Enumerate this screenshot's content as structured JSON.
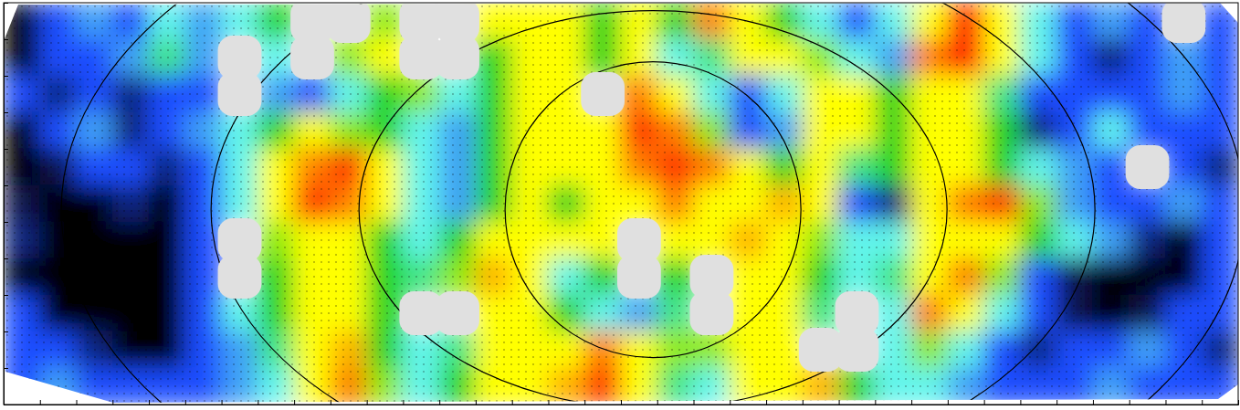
{
  "chart_data": {
    "type": "heatmap",
    "z": [
      [
        0,
        1,
        1.5,
        1,
        2,
        1.5,
        2,
        3,
        null,
        null,
        3.5,
        null,
        null,
        4,
        4,
        4,
        3,
        4,
        3,
        4.5,
        4,
        3,
        2,
        1,
        2,
        4,
        5,
        4,
        2,
        1,
        1.5,
        1,
        null,
        1
      ],
      [
        0,
        1,
        1,
        1.5,
        2.5,
        1.5,
        null,
        2,
        null,
        3.5,
        4,
        null,
        null,
        3,
        4,
        4,
        3,
        4,
        2,
        2.5,
        4,
        4,
        3.5,
        2,
        1.5,
        4.5,
        5,
        4,
        2,
        1,
        0.5,
        1,
        1.5,
        1
      ],
      [
        1,
        0.5,
        1,
        0.5,
        1,
        1,
        null,
        1.5,
        1,
        2,
        3,
        3.5,
        2,
        3,
        4,
        4,
        null,
        4.5,
        4,
        2,
        1,
        2,
        4,
        4,
        3,
        4,
        4,
        2.5,
        1,
        1,
        1,
        1,
        1.5,
        1
      ],
      [
        0,
        1,
        1.5,
        0.5,
        1,
        1.5,
        2,
        3,
        4,
        3.5,
        3,
        2,
        1.5,
        3,
        4,
        4,
        4,
        4.8,
        4.5,
        3.5,
        1,
        1.5,
        4,
        4,
        3,
        4,
        4,
        3,
        0.5,
        1,
        2,
        1,
        1,
        1
      ],
      [
        0,
        0.3,
        1,
        1,
        0.5,
        1,
        2,
        4,
        4.5,
        4.8,
        4,
        2,
        1.5,
        3,
        4,
        4,
        4,
        4.5,
        4.8,
        4.5,
        4,
        3,
        4,
        2.5,
        3,
        4,
        4,
        3,
        2,
        1.5,
        1,
        null,
        1,
        0.5
      ],
      [
        0.3,
        0,
        0,
        0.5,
        0,
        1,
        2,
        4,
        4.8,
        4.5,
        4,
        2,
        1.5,
        3,
        4,
        3,
        4,
        4,
        4.5,
        4,
        4,
        4.3,
        4,
        1,
        0.5,
        4,
        4.5,
        4.8,
        3.5,
        1.5,
        1,
        1,
        1.5,
        1
      ],
      [
        0.5,
        0,
        0,
        0,
        0,
        1,
        null,
        3.5,
        4,
        4,
        3,
        2,
        3,
        4,
        4,
        4,
        4,
        null,
        4,
        4,
        4.3,
        4,
        3.5,
        2,
        2,
        4,
        4,
        4,
        3,
        2,
        1.5,
        0.5,
        0,
        1
      ],
      [
        0,
        0,
        0,
        0,
        0,
        1,
        null,
        3,
        4,
        4,
        3,
        2.5,
        3.5,
        4.3,
        4,
        2,
        3,
        null,
        3,
        null,
        4,
        4,
        3,
        2,
        2.5,
        4,
        4.5,
        3.5,
        1,
        0.3,
        0,
        0,
        0,
        1
      ],
      [
        1,
        0,
        0,
        0,
        0,
        1,
        2,
        3,
        4,
        4,
        3,
        null,
        null,
        4,
        4,
        3,
        2,
        1.5,
        2.5,
        null,
        4,
        4,
        2.5,
        null,
        2,
        4.5,
        4,
        2,
        1,
        0.3,
        0,
        0.3,
        1,
        1
      ],
      [
        1,
        1,
        0.5,
        0,
        0,
        1,
        1.5,
        2.5,
        4,
        4.3,
        3,
        2,
        2.5,
        4,
        4,
        4,
        4.5,
        4,
        3.5,
        3.5,
        4,
        4,
        null,
        null,
        2,
        3.5,
        2,
        1,
        0.5,
        1,
        1,
        1.5,
        1,
        0.5
      ],
      [
        1,
        1.5,
        1,
        1,
        1,
        1,
        1.5,
        2,
        4,
        4.5,
        3.5,
        2,
        3,
        4,
        4,
        4.3,
        4.8,
        4,
        2.5,
        2,
        4,
        4,
        4.3,
        3,
        2,
        2,
        1.5,
        1,
        1,
        1,
        1.5,
        1,
        1,
        1
      ]
    ],
    "zlim": [
      0,
      5
    ],
    "xlim": [
      0,
      34
    ],
    "ylim": [
      0,
      11
    ],
    "xticks": [
      0,
      1,
      2,
      3,
      4,
      5,
      6,
      7,
      8,
      9,
      10,
      11,
      12,
      13,
      14,
      15,
      16,
      17,
      18,
      19,
      20,
      21,
      22,
      23,
      24,
      25,
      26,
      27,
      28,
      29,
      30,
      31,
      32,
      33,
      34
    ],
    "yticks": [
      0,
      1,
      2,
      3,
      4,
      5,
      6,
      7,
      8,
      9,
      10,
      11
    ],
    "tick_labels": false
  }
}
